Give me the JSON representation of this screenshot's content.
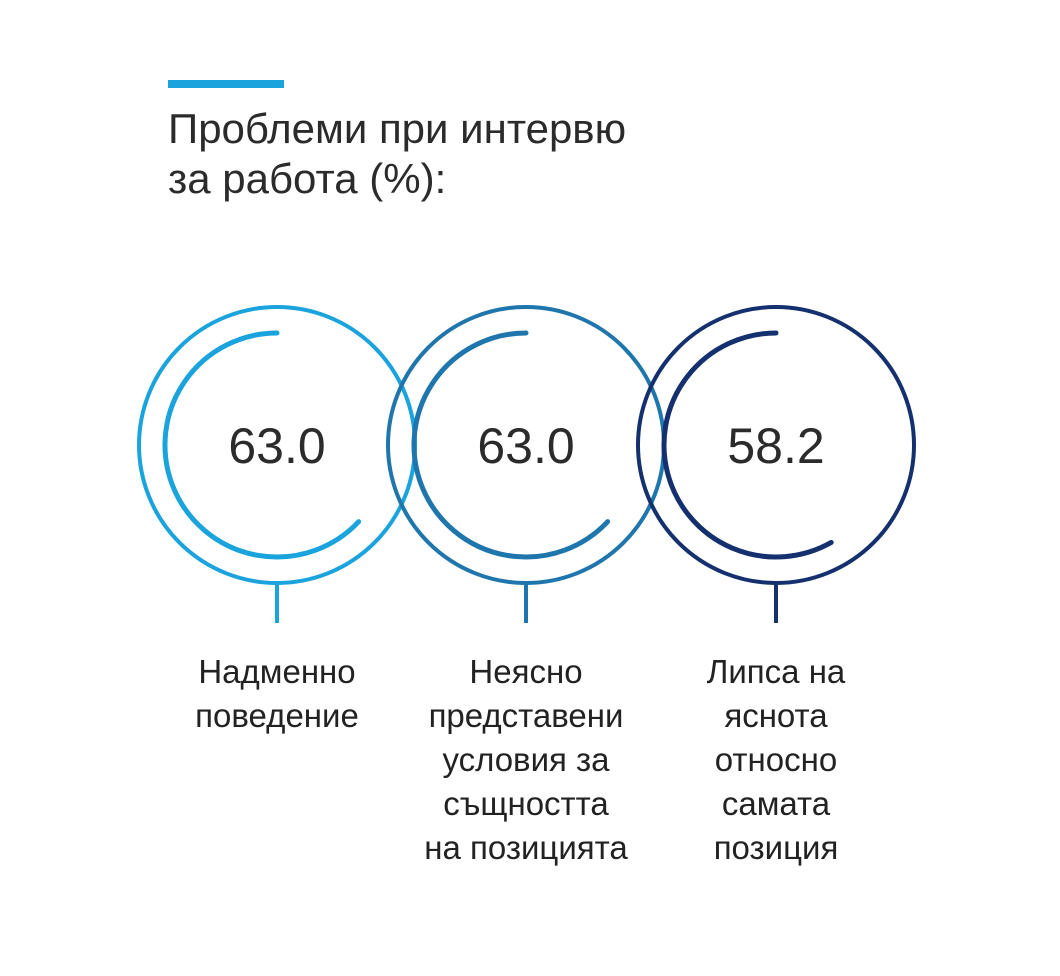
{
  "title": "Проблеми при интервю\nза работа (%):",
  "colors": {
    "accent": "#1aa3dc"
  },
  "chart_data": {
    "type": "radial-progress",
    "title": "Проблеми при интервю за работа (%):",
    "unit": "%",
    "max": 100,
    "items": [
      {
        "label": "Надменно\nповедение",
        "value": 63.0,
        "value_label": "63.0",
        "color": "#1aa3dc"
      },
      {
        "label": "Неясно\nпредставени\nусловия за\nсъщността\nна позицията",
        "value": 63.0,
        "value_label": "63.0",
        "color": "#1f76ad"
      },
      {
        "label": "Липса на\nяснота\nотносно\nсамата\nпозиция",
        "value": 58.2,
        "value_label": "58.2",
        "color": "#14306e"
      }
    ]
  }
}
